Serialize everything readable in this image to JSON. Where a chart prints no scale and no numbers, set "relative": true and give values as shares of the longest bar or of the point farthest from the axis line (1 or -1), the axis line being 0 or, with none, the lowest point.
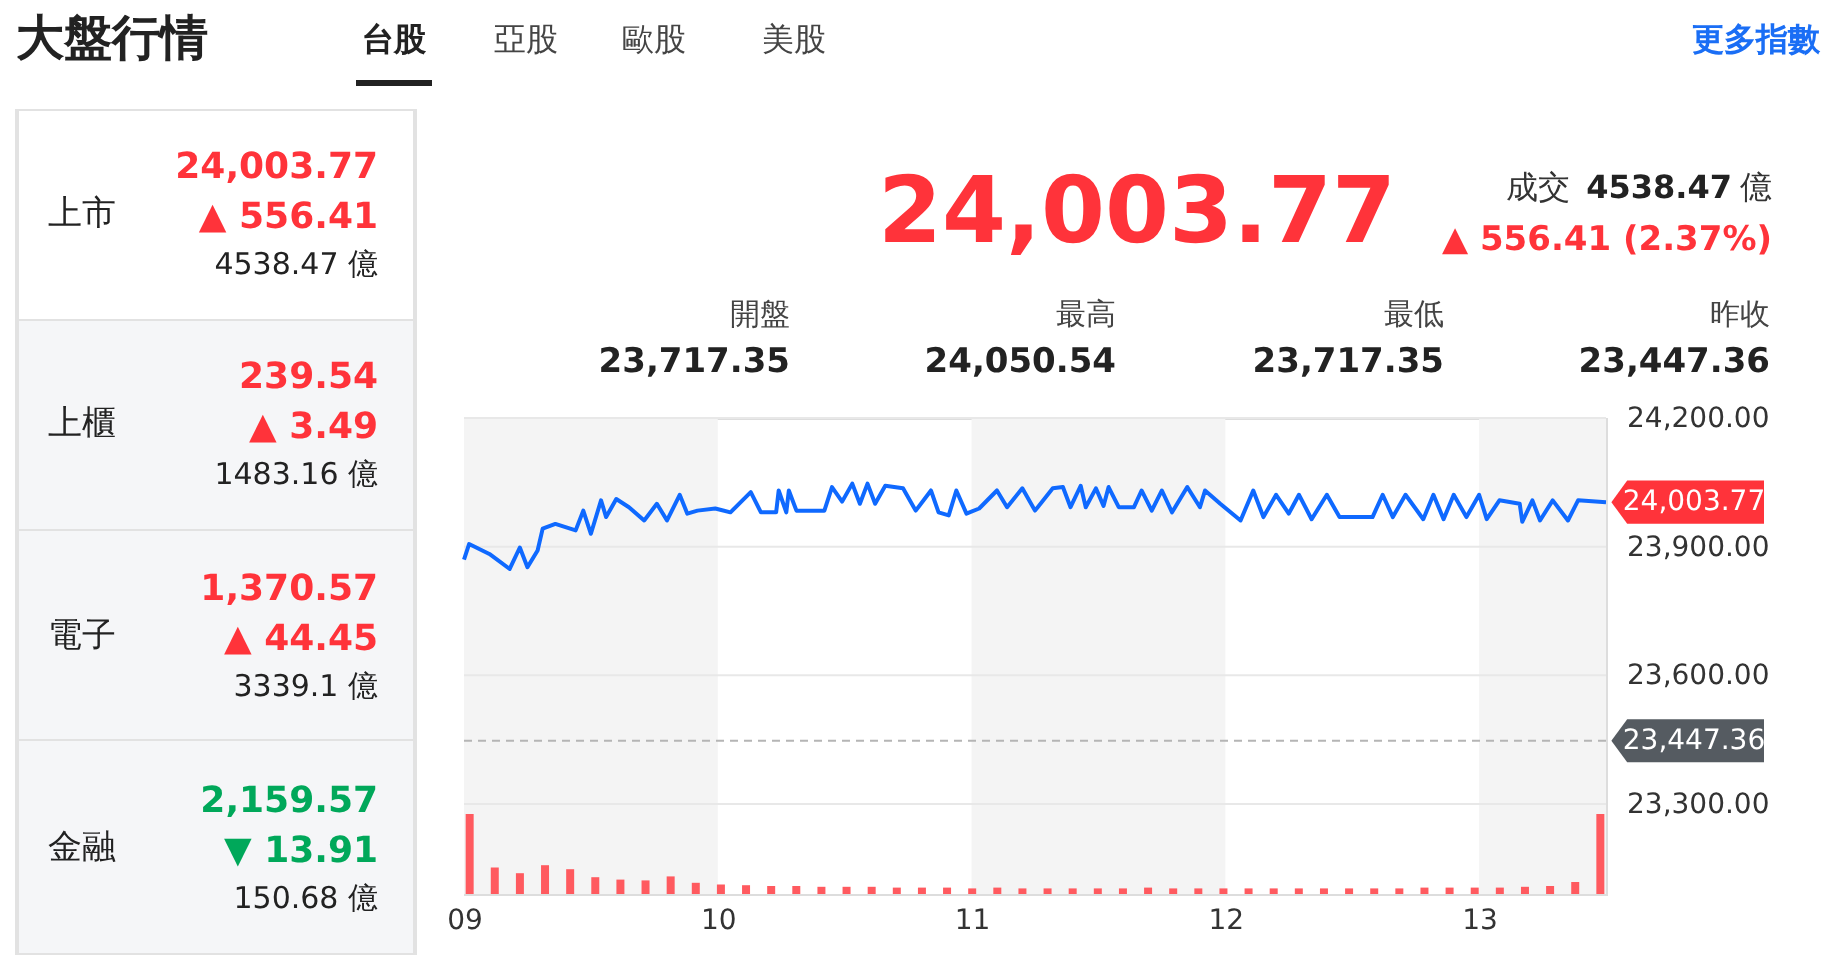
{
  "chart_data": [
    {
      "type": "other",
      "title": "大盤行情",
      "annotations": [
        "台股",
        "亞股",
        "歐股",
        "美股",
        "更多指數",
        "上市",
        "24,003.77",
        "▲ 556.41",
        "4538.47 億",
        "上櫃",
        "239.54",
        "▲ 3.49",
        "1483.16 億",
        "電子",
        "1,370.57",
        "▲ 44.45",
        "3339.1 億",
        "金融",
        "2,159.57",
        "▼ 13.91",
        "150.68 億",
        "24,003.77",
        "成交",
        "4538.47",
        "億",
        "▲ 556.41 (2.37%)",
        "開盤",
        "23,717.35",
        "最高",
        "24,050.54",
        "最低",
        "23,717.35",
        "昨收",
        "23,447.36"
      ]
    },
    {
      "type": "line",
      "x": [
        9.0,
        9.02,
        9.1,
        9.18,
        9.22,
        9.25,
        9.29,
        9.31,
        9.36,
        9.44,
        9.47,
        9.5,
        9.54,
        9.56,
        9.6,
        9.65,
        9.71,
        9.76,
        9.8,
        9.85,
        9.88,
        9.92,
        9.99,
        10.05,
        10.13,
        10.17,
        10.23,
        10.24,
        10.27,
        10.28,
        10.31,
        10.42,
        10.45,
        10.49,
        10.53,
        10.56,
        10.59,
        10.62,
        10.66,
        10.73,
        10.78,
        10.84,
        10.87,
        10.91,
        10.94,
        10.98,
        11.03,
        11.1,
        11.14,
        11.2,
        11.25,
        11.32,
        11.36,
        11.39,
        11.43,
        11.45,
        11.49,
        11.52,
        11.54,
        11.58,
        11.64,
        11.67,
        11.71,
        11.75,
        11.79,
        11.85,
        11.9,
        11.92,
        11.98,
        12.06,
        12.11,
        12.15,
        12.2,
        12.25,
        12.29,
        12.34,
        12.4,
        12.45,
        12.58,
        12.62,
        12.66,
        12.71,
        12.78,
        12.82,
        12.86,
        12.9,
        12.95,
        13.0,
        13.03,
        13.08,
        13.16,
        13.17,
        13.21,
        13.24,
        13.29,
        13.35,
        13.39,
        13.5
      ],
      "series": [
        {
          "color": "#0f69ff",
          "values": [
            23870,
            23906,
            23883,
            23848,
            23898,
            23852,
            23891,
            23942,
            23953,
            23938,
            23984,
            23930,
            24008,
            23969,
            24011,
            23992,
            23961,
            24000,
            23961,
            24021,
            23977,
            23984,
            23989,
            23980,
            24027,
            23980,
            23980,
            24031,
            23980,
            24031,
            23984,
            23984,
            24039,
            24005,
            24047,
            24000,
            24047,
            24000,
            24042,
            24036,
            23984,
            24031,
            23980,
            23973,
            24031,
            23977,
            23989,
            24031,
            23992,
            24036,
            23984,
            24036,
            24039,
            23992,
            24042,
            23992,
            24036,
            23995,
            24039,
            23992,
            23992,
            24031,
            23984,
            24031,
            23980,
            24039,
            23992,
            24031,
            24000,
            23961,
            24031,
            23969,
            24021,
            23977,
            24021,
            23964,
            24021,
            23969,
            23969,
            24021,
            23969,
            24021,
            23964,
            24021,
            23964,
            24021,
            23969,
            24021,
            23964,
            24008,
            24000,
            23958,
            24008,
            23961,
            24008,
            23961,
            24008,
            24003.77
          ]
        }
      ],
      "xlim": [
        9,
        13.5
      ],
      "xticks": [
        {
          "value": 9,
          "label": "09"
        },
        {
          "value": 10,
          "label": "10"
        },
        {
          "value": 11,
          "label": "11"
        },
        {
          "value": 12,
          "label": "12"
        },
        {
          "value": 13,
          "label": "13"
        }
      ],
      "ylim": [
        23090,
        24200
      ],
      "yticks": [
        {
          "value": 23300,
          "label": "23,300.00"
        },
        {
          "value": 23600,
          "label": "23,600.00"
        },
        {
          "value": 23900,
          "label": "23,900.00"
        },
        {
          "value": 24200,
          "label": "24,200.00"
        }
      ],
      "grid": "y",
      "line_style": "solid",
      "bands": [
        {
          "axis": "x",
          "from": 9,
          "to": 10,
          "color": "#f4f4f4"
        },
        {
          "axis": "x",
          "from": 11,
          "to": 12,
          "color": "#f4f4f4"
        },
        {
          "axis": "x",
          "from": 13,
          "to": 13.5,
          "color": "#f4f4f4"
        }
      ],
      "ref_lines": [
        {
          "axis": "y",
          "value": 23447.36,
          "label": "23,447.36",
          "color": "#b5b5b5",
          "line_style": "dashed"
        }
      ],
      "annotations": [
        {
          "text": "24,003.77",
          "x": 13.5,
          "y": 24003.77
        }
      ]
    },
    {
      "type": "bar",
      "relative": true,
      "color": "#ff5a5f",
      "categories": [
        null,
        null,
        null,
        null,
        null,
        null,
        null,
        null,
        null,
        null,
        null,
        null,
        null,
        null,
        null,
        null,
        null,
        null,
        null,
        null,
        null,
        null,
        null,
        null,
        null,
        null,
        null,
        null,
        null,
        null,
        null,
        null,
        null,
        null,
        null,
        null,
        null,
        null,
        null,
        null,
        null,
        null,
        null,
        null,
        null,
        null
      ],
      "values": [
        1,
        0.33,
        0.26,
        0.36,
        0.31,
        0.21,
        0.18,
        0.17,
        0.22,
        0.14,
        0.12,
        0.11,
        0.1,
        0.1,
        0.09,
        0.09,
        0.09,
        0.08,
        0.08,
        0.08,
        0.07,
        0.08,
        0.07,
        0.07,
        0.07,
        0.07,
        0.07,
        0.08,
        0.07,
        0.07,
        0.07,
        0.07,
        0.07,
        0.07,
        0.07,
        0.07,
        0.07,
        0.07,
        0.08,
        0.08,
        0.08,
        0.08,
        0.09,
        0.1,
        0.15,
        1
      ]
    }
  ]
}
